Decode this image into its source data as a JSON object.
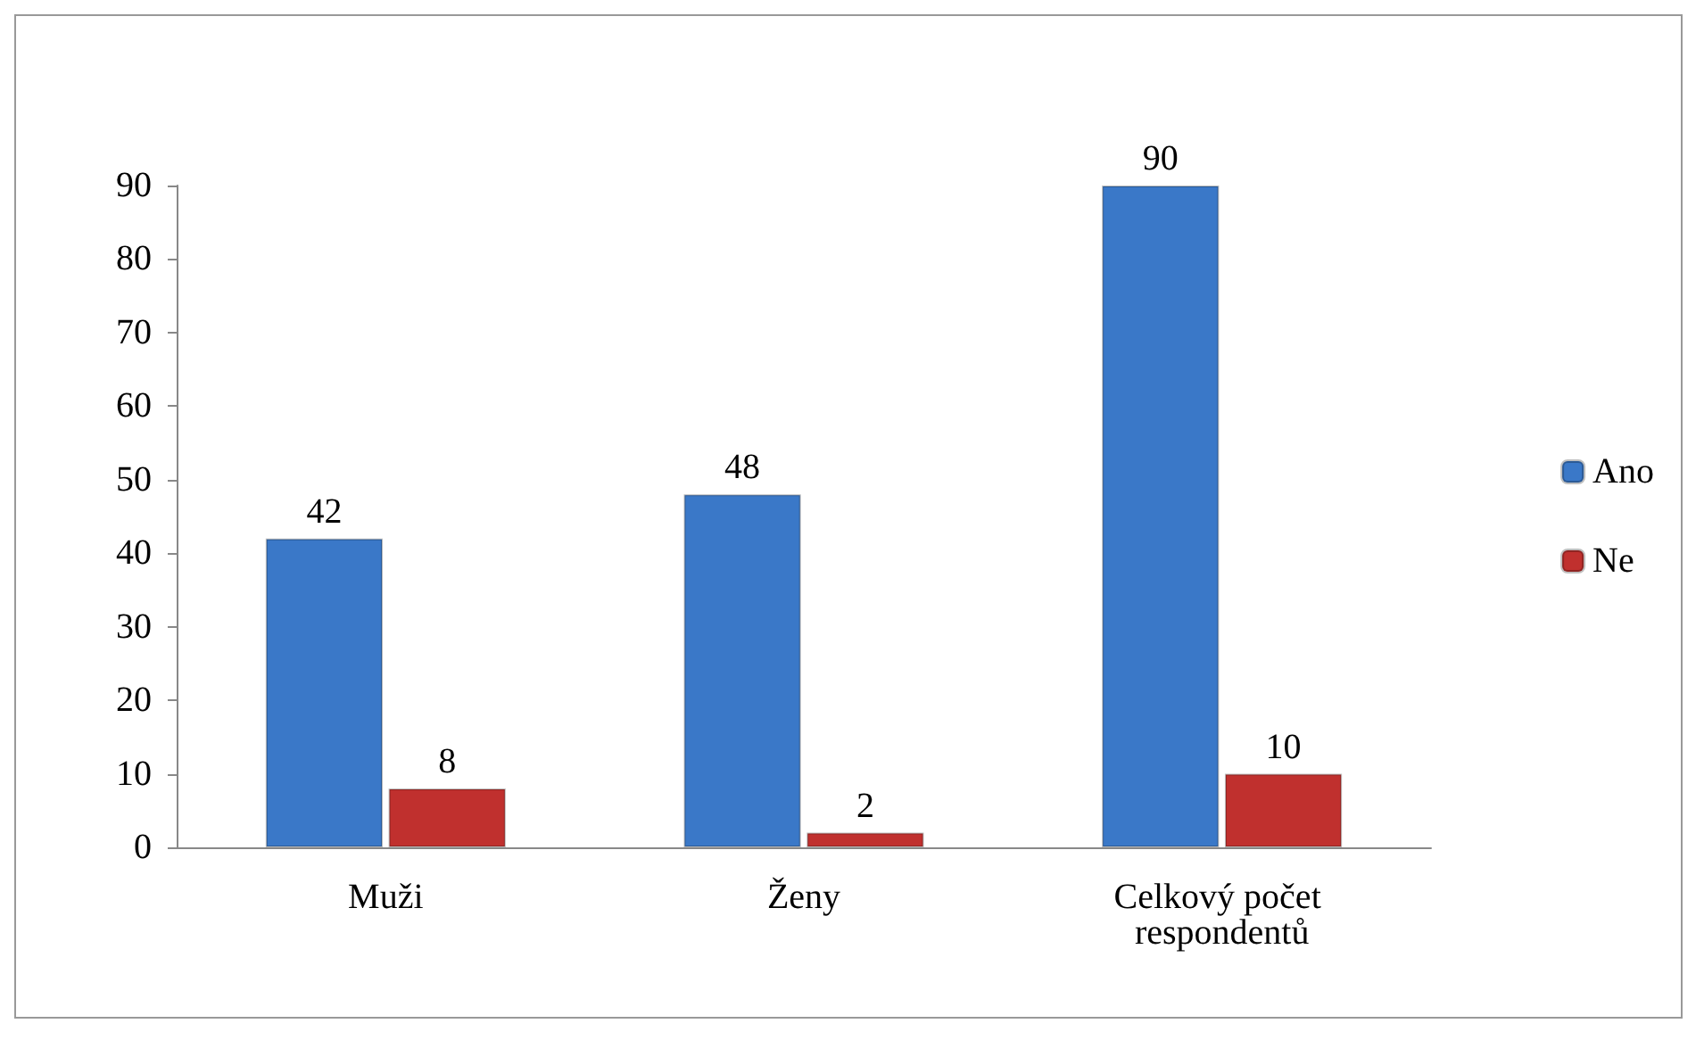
{
  "chart_data": {
    "type": "bar",
    "categories": [
      "Muži",
      "Ženy",
      "Celkový počet respondentů"
    ],
    "series": [
      {
        "name": "Ano",
        "color": "#3a78c8",
        "values": [
          42,
          48,
          90
        ]
      },
      {
        "name": "Ne",
        "color": "#c0302e",
        "values": [
          8,
          2,
          10
        ]
      }
    ],
    "ylim": [
      0,
      90
    ],
    "yticks": [
      0,
      10,
      20,
      30,
      40,
      50,
      60,
      70,
      80,
      90
    ],
    "grid": false,
    "legend": "right",
    "data_labels": true
  }
}
